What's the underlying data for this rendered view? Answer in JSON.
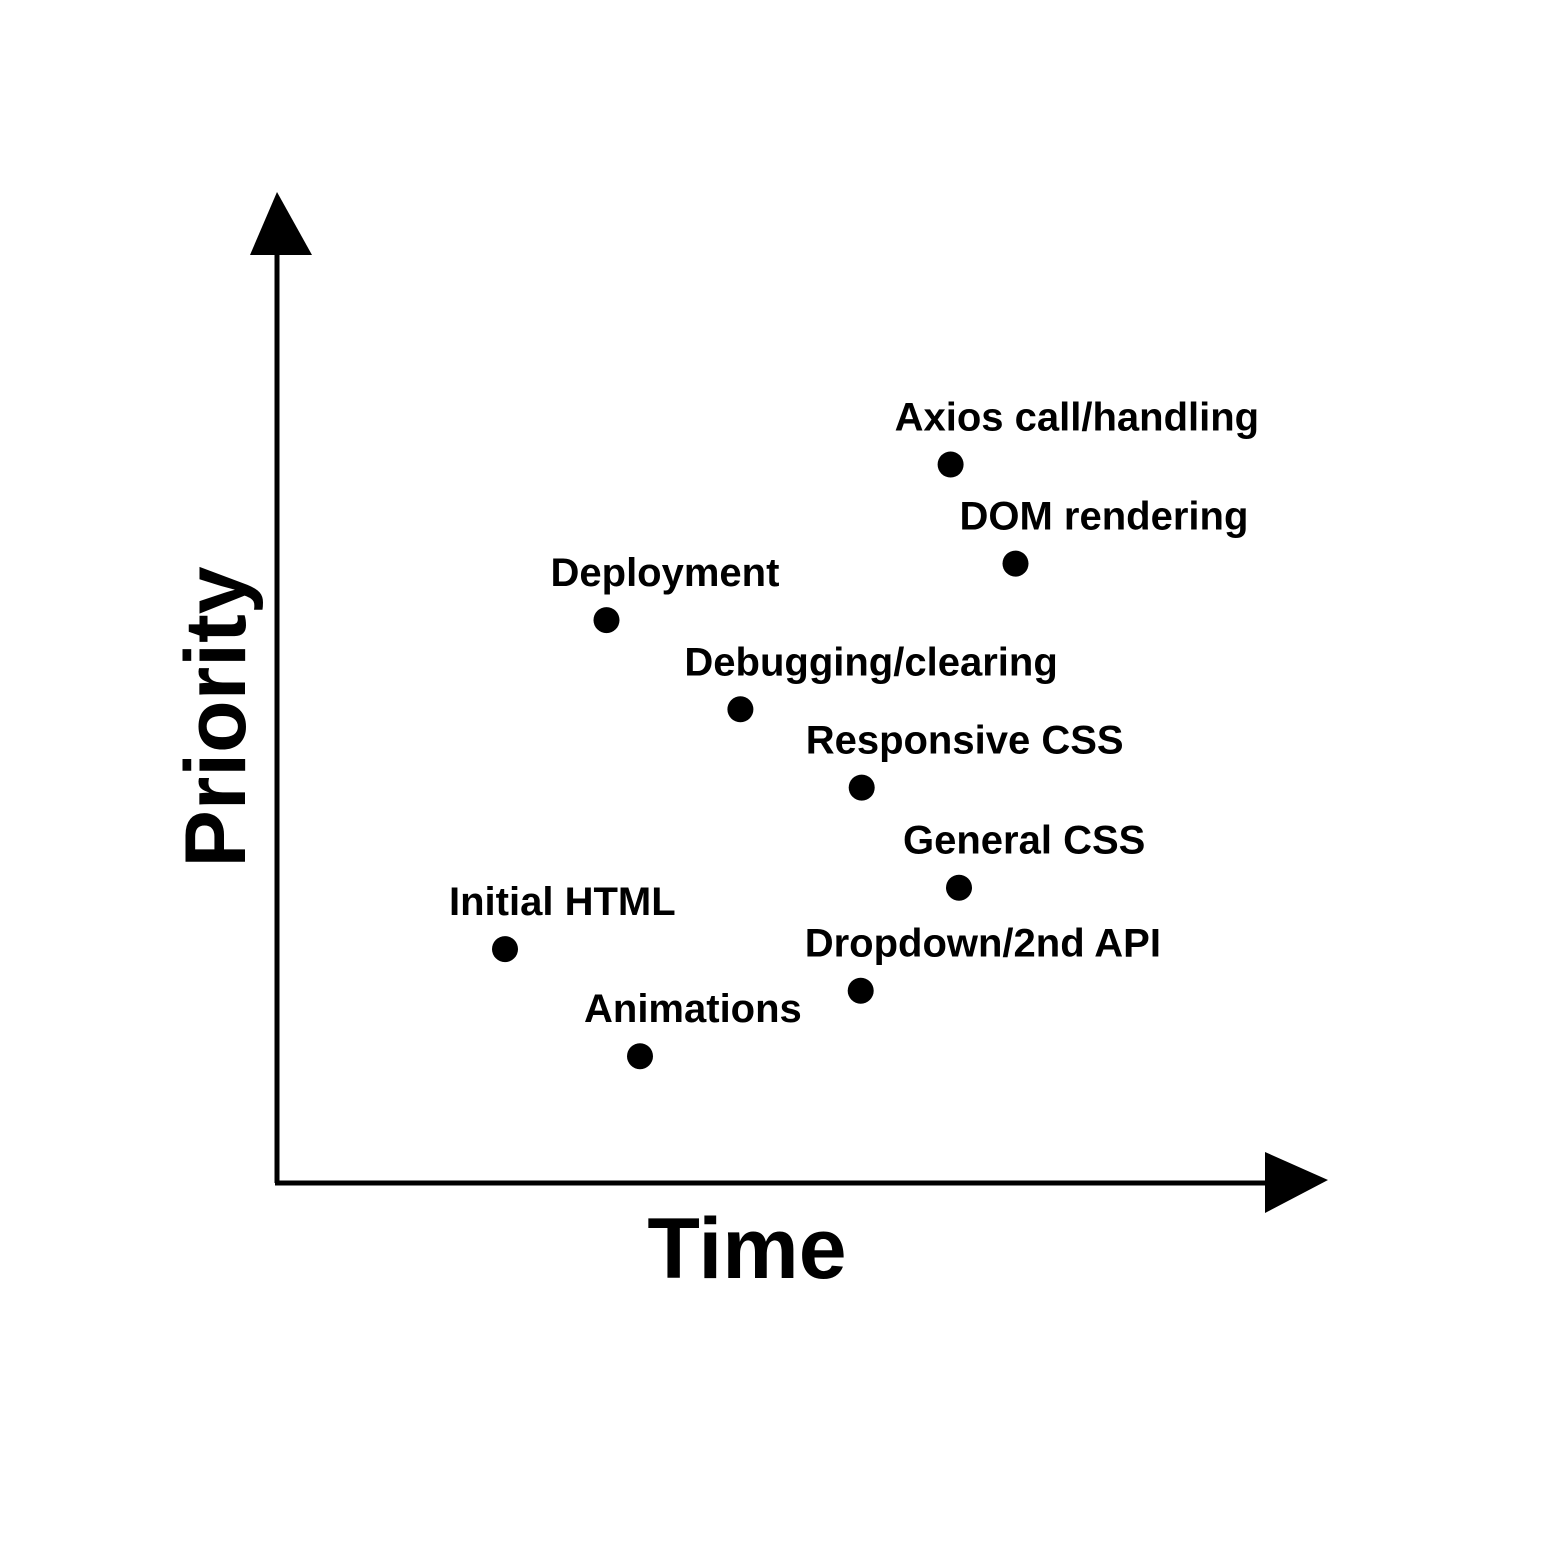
{
  "chart_data": {
    "type": "scatter",
    "title": "",
    "xlabel": "Time",
    "ylabel": "Priority",
    "xlim": [
      0,
      100
    ],
    "ylim": [
      0,
      100
    ],
    "grid": false,
    "legend": "none",
    "axis_color": "#000000",
    "point_color": "#000000",
    "points": [
      {
        "label": "Axios call/handling",
        "x": 64.4,
        "y": 72.5
      },
      {
        "label": "DOM rendering",
        "x": 70.6,
        "y": 62.5
      },
      {
        "label": "Deployment",
        "x": 31.5,
        "y": 56.8
      },
      {
        "label": "Debugging/clearing",
        "x": 44.3,
        "y": 47.8
      },
      {
        "label": "Responsive CSS",
        "x": 55.9,
        "y": 39.9
      },
      {
        "label": "General CSS",
        "x": 65.2,
        "y": 29.8
      },
      {
        "label": "Initial HTML",
        "x": 21.8,
        "y": 23.6
      },
      {
        "label": "Dropdown/2nd API",
        "x": 55.8,
        "y": 19.4
      },
      {
        "label": "Animations",
        "x": 34.7,
        "y": 12.8
      }
    ]
  }
}
